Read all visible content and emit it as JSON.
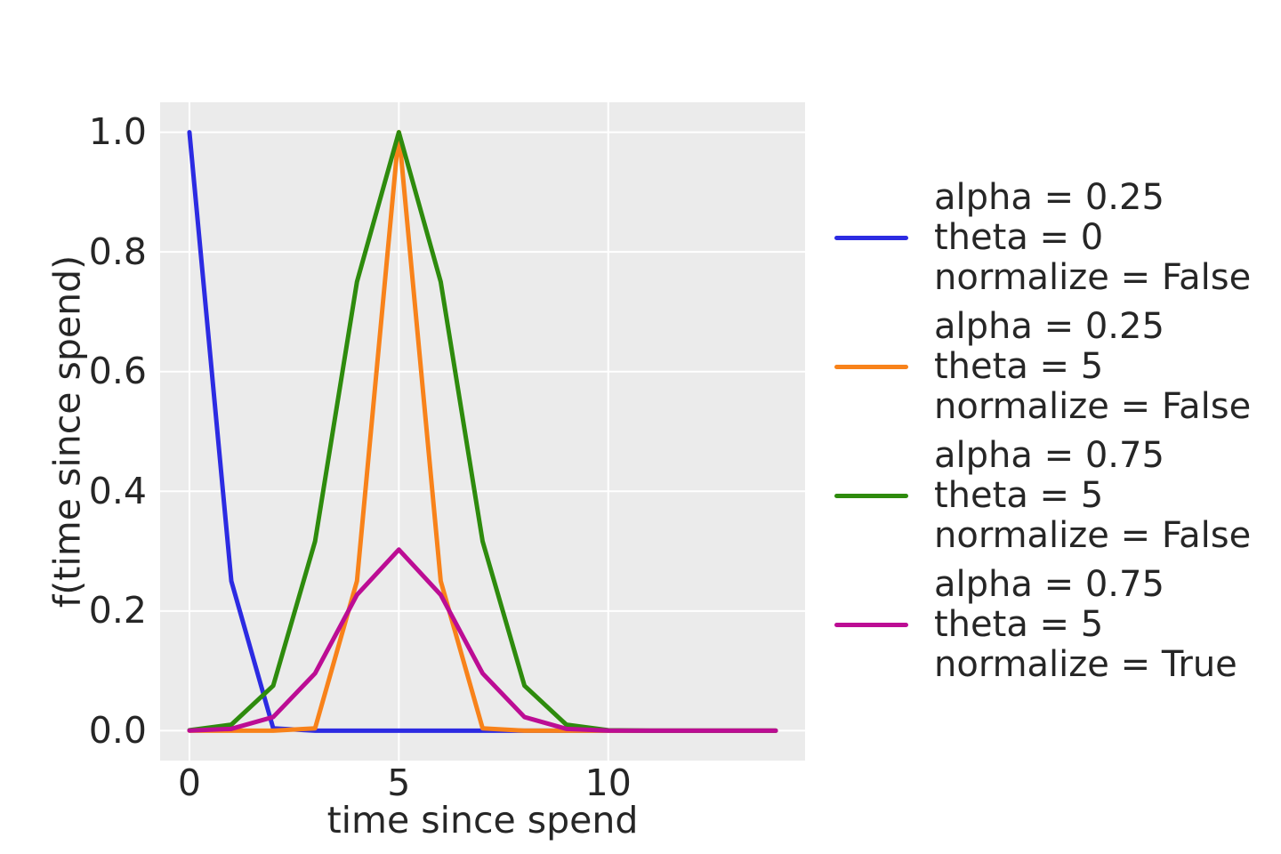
{
  "figure": {
    "background": "#ffffff",
    "axes_background": "#ebebeb",
    "grid_color": "#ffffff",
    "text_color": "#262626"
  },
  "chart_data": {
    "type": "line",
    "title": "",
    "xlabel": "time since spend",
    "ylabel": "f(time since spend)",
    "xlim": [
      -0.7,
      14.7
    ],
    "ylim": [
      -0.05,
      1.05
    ],
    "grid": true,
    "legend_position": "right-outside",
    "line_width": 5,
    "x": [
      0,
      1,
      2,
      3,
      4,
      5,
      6,
      7,
      8,
      9,
      10,
      11,
      12,
      13,
      14
    ],
    "x_ticks": {
      "values": [
        0,
        5,
        10
      ],
      "labels": [
        "0",
        "5",
        "10"
      ]
    },
    "y_ticks": {
      "values": [
        0,
        0.2,
        0.4,
        0.6,
        0.8,
        1
      ],
      "labels": [
        "0.0",
        "0.2",
        "0.4",
        "0.6",
        "0.8",
        "1.0"
      ]
    },
    "series": [
      {
        "name": "alpha = 0.25, theta = 0, normalize = False",
        "legend_lines": [
          "alpha = 0.25",
          "theta = 0",
          "normalize = False"
        ],
        "color": "#2c2be2",
        "values": [
          1,
          0.25,
          0.0039,
          4e-06,
          0,
          0,
          0,
          0,
          0,
          0,
          0,
          0,
          0,
          0,
          0
        ]
      },
      {
        "name": "alpha = 0.25, theta = 5, normalize = False",
        "legend_lines": [
          "alpha = 0.25",
          "theta = 5",
          "normalize = False"
        ],
        "color": "#f8821a",
        "values": [
          0,
          0,
          4e-06,
          0.0039,
          0.25,
          1,
          0.25,
          0.0039,
          4e-06,
          0,
          0,
          0,
          0,
          0,
          0
        ]
      },
      {
        "name": "alpha = 0.75, theta = 5, normalize = False",
        "legend_lines": [
          "alpha = 0.75",
          "theta = 5",
          "normalize = False"
        ],
        "color": "#2e8b0d",
        "values": [
          0.00075,
          0.01002,
          0.07508,
          0.31641,
          0.75,
          1,
          0.75,
          0.31641,
          0.07508,
          0.01002,
          0.00075,
          3e-05,
          1e-06,
          0,
          0
        ]
      },
      {
        "name": "alpha = 0.75, theta = 5, normalize = True",
        "legend_lines": [
          "alpha = 0.75",
          "theta = 5",
          "normalize = True"
        ],
        "color": "#bc0d94",
        "values": [
          0.00023,
          0.00303,
          0.02272,
          0.09575,
          0.22696,
          0.30261,
          0.22696,
          0.09575,
          0.02272,
          0.00303,
          0.00023,
          1e-05,
          0,
          0,
          0
        ]
      }
    ]
  }
}
